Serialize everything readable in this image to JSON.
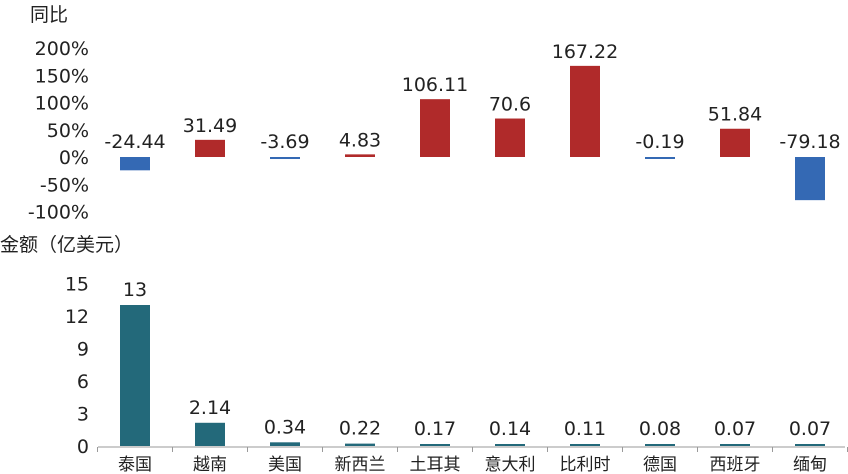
{
  "chart_data": [
    {
      "type": "bar",
      "ylabel": "同比",
      "categories": [
        "泰国",
        "越南",
        "美国",
        "新西兰",
        "土耳其",
        "意大利",
        "比利时",
        "德国",
        "西班牙",
        "缅甸"
      ],
      "values": [
        -24.44,
        31.49,
        -3.69,
        4.83,
        106.11,
        70.6,
        167.22,
        -0.19,
        51.84,
        -79.18
      ],
      "labels": [
        "-24.44",
        "31.49",
        "-3.69",
        "4.83",
        "106.11",
        "70.6",
        "167.22",
        "-0.19",
        "51.84",
        "-79.18"
      ],
      "yticks": [
        "200%",
        "150%",
        "100%",
        "50%",
        "0%",
        "-50%",
        "-100%"
      ],
      "ytick_values": [
        200,
        150,
        100,
        50,
        0,
        -50,
        -100
      ],
      "ylim": [
        -100,
        200
      ],
      "colors": {
        "positive": "#b02a2a",
        "negative": "#3469b4"
      },
      "grid": false
    },
    {
      "type": "bar",
      "ylabel": "金额（亿美元）",
      "categories": [
        "泰国",
        "越南",
        "美国",
        "新西兰",
        "土耳其",
        "意大利",
        "比利时",
        "德国",
        "西班牙",
        "缅甸"
      ],
      "values": [
        13,
        2.14,
        0.34,
        0.22,
        0.17,
        0.14,
        0.11,
        0.08,
        0.07,
        0.07
      ],
      "labels": [
        "13",
        "2.14",
        "0.34",
        "0.22",
        "0.17",
        "0.14",
        "0.11",
        "0.08",
        "0.07",
        "0.07"
      ],
      "yticks": [
        "15",
        "12",
        "9",
        "6",
        "3",
        "0"
      ],
      "ytick_values": [
        15,
        12,
        9,
        6,
        3,
        0
      ],
      "ylim": [
        0,
        15
      ],
      "colors": {
        "bar": "#23697a"
      },
      "grid": false
    }
  ]
}
